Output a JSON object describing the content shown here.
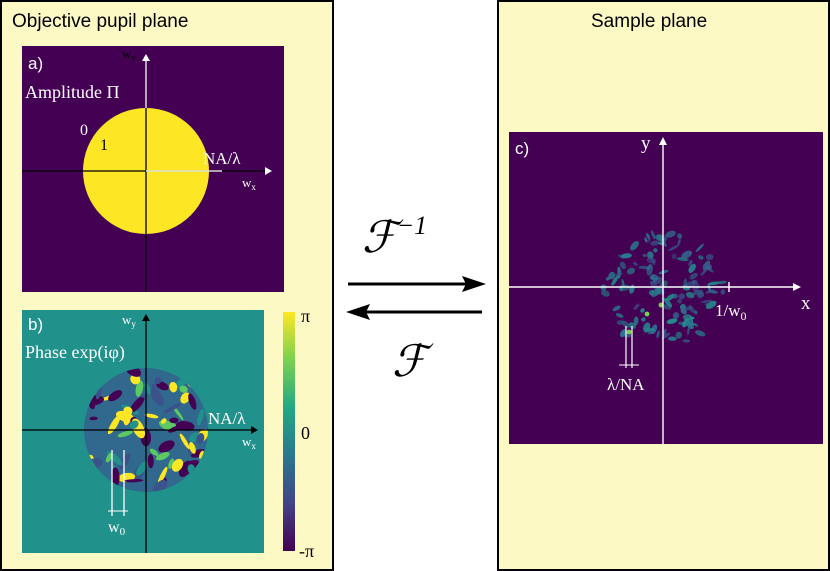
{
  "left_panel": {
    "title": "Objective pupil plane",
    "amplitude_plot": {
      "panel_label": "a)",
      "title": "Amplitude Π",
      "outside_value": "0",
      "inside_value": "1",
      "radius_label": "NA/λ",
      "x_axis": "w",
      "x_axis_sub": "x",
      "y_axis": "w",
      "y_axis_sub": "y"
    },
    "phase_plot": {
      "panel_label": "b)",
      "title": "Phase exp(iφ)",
      "radius_label": "NA/λ",
      "x_axis": "w",
      "x_axis_sub": "x",
      "y_axis": "w",
      "y_axis_sub": "y",
      "width_marker": "w",
      "width_marker_sub": "0"
    },
    "colorbar": {
      "top": "π",
      "middle": "0",
      "bottom": "-π"
    }
  },
  "transforms": {
    "forward": "ℱ",
    "forward_exp": "−1",
    "backward": "ℱ"
  },
  "right_panel": {
    "title": "Sample plane",
    "speckle_plot": {
      "panel_label": "c)",
      "x_axis": "x",
      "y_axis": "y",
      "tick_label": "1/w",
      "tick_label_sub": "0",
      "grain_marker": "λ/NA"
    }
  },
  "colors": {
    "panel_bg": "#fdf9c4",
    "plot_dark": "#440154",
    "amplitude_disk": "#fde725",
    "phase_bg": "#21918c",
    "speckle_bg": "#440154"
  }
}
